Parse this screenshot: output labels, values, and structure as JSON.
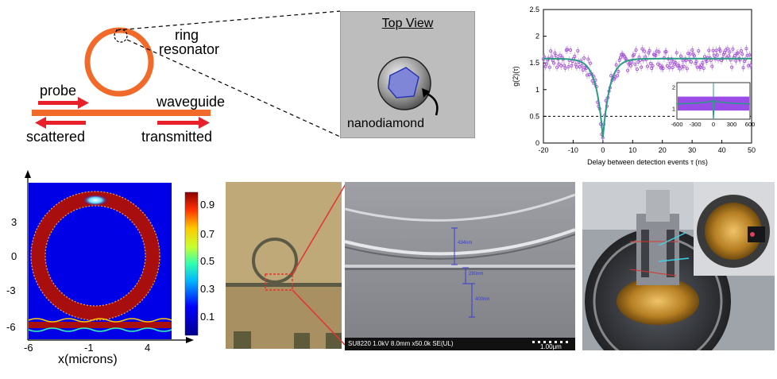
{
  "schematic": {
    "ring_label_1": "ring",
    "ring_label_2": "resonator",
    "probe": "probe",
    "waveguide": "waveguide",
    "scattered": "scattered",
    "transmitted": "transmitted",
    "ring_color": "#f26a2a",
    "arrow_color": "#e8202a"
  },
  "topview": {
    "title": "Top View",
    "nanodiamond": "nanodiamond"
  },
  "g2_plot": {
    "ylabel": "g(2)(τ)",
    "xlabel": "Delay between detection events τ (ns)",
    "inset_x_ticks": [
      "-600",
      "-300",
      "0",
      "300",
      "600"
    ],
    "inset_y_ticks": [
      "1",
      "2"
    ]
  },
  "field_map": {
    "xlabel": "x(microns)",
    "x_ticks": [
      "-6",
      "-1",
      "4"
    ],
    "y_ticks": [
      "3",
      "0",
      "-3",
      "-6"
    ],
    "colorbar_ticks": [
      "0.9",
      "0.7",
      "0.5",
      "0.3",
      "0.1"
    ]
  },
  "sem": {
    "meas_1": "434nm",
    "meas_2": "290nm",
    "meas_3": "400nm",
    "info": "SU8220 1.0kV 8.0mm x50.0k SE(UL)",
    "scale": "1.00μm"
  },
  "chart_data": {
    "type": "scatter",
    "xlabel": "Delay between detection events τ (ns)",
    "ylabel": "g(2)(τ)",
    "xlim": [
      -20,
      50
    ],
    "ylim": [
      0,
      2.5
    ],
    "x_ticks": [
      -20,
      -10,
      0,
      10,
      20,
      30,
      40,
      50
    ],
    "y_ticks": [
      0,
      0.5,
      1,
      1.5,
      2,
      2.5
    ],
    "threshold_line": 0.5,
    "fit": {
      "baseline": 1.58,
      "minimum": 0.1,
      "center": 0,
      "width_ns": 2.3
    },
    "inset": {
      "xlim": [
        -600,
        600
      ],
      "ylim": [
        0.5,
        2.2
      ],
      "baseline": 1.2
    },
    "marker_color": "#a14fd3",
    "fit_color": "#2a9c86"
  }
}
